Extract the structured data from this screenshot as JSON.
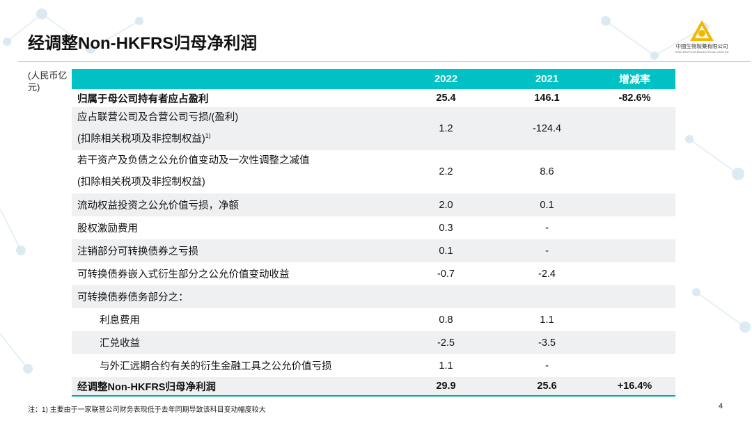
{
  "title": "经调整Non-HKFRS归母净利润",
  "logo": {
    "company_cn": "中國生物製藥有限公司",
    "company_en": "SINO BIOPHARMACEUTICAL LIMITED",
    "brand_color": "#f2b700"
  },
  "unit_label": "(人民币亿元)",
  "accent_color": "#00c2c4",
  "table": {
    "headers": [
      "",
      "2022",
      "2021",
      "增减率"
    ],
    "rows": [
      {
        "label": "归属于母公司持有者应占盈利",
        "v2022": "25.4",
        "v2021": "146.1",
        "change": "-82.6%"
      },
      {
        "label": "应占联营公司及合营公司亏损/(盈利)",
        "label2": "(扣除相关税项及非控制权益)",
        "footnote_mark": "1)",
        "v2022": "1.2",
        "v2021": "-124.4",
        "change": ""
      },
      {
        "label": "若干资产及负债之公允价值变动及一次性调整之减值",
        "label2": "(扣除相关税项及非控制权益)",
        "v2022": "2.2",
        "v2021": "8.6",
        "change": ""
      },
      {
        "label": "流动权益投资之公允价值亏损，净额",
        "v2022": "2.0",
        "v2021": "0.1",
        "change": ""
      },
      {
        "label": "股权激励费用",
        "v2022": "0.3",
        "v2021": "-",
        "change": ""
      },
      {
        "label": "注销部分可转换债券之亏损",
        "v2022": "0.1",
        "v2021": "-",
        "change": ""
      },
      {
        "label": "可转换债券嵌入式衍生部分之公允价值变动收益",
        "v2022": "-0.7",
        "v2021": "-2.4",
        "change": ""
      },
      {
        "label": "可转换债券债务部分之：",
        "v2022": "",
        "v2021": "",
        "change": ""
      },
      {
        "label": "利息费用",
        "v2022": "0.8",
        "v2021": "1.1",
        "change": ""
      },
      {
        "label": "汇兑收益",
        "v2022": "-2.5",
        "v2021": "-3.5",
        "change": ""
      },
      {
        "label": "与外汇远期合约有关的衍生金融工具之公允价值亏损",
        "v2022": "1.1",
        "v2021": "-",
        "change": ""
      },
      {
        "label": "经调整Non-HKFRS归母净利润",
        "v2022": "29.9",
        "v2021": "25.6",
        "change": "+16.4%"
      }
    ]
  },
  "footnote": "注：1) 主要由于一家联营公司财务表现低于去年同期导致该科目变动幅度较大",
  "page_number": "4"
}
